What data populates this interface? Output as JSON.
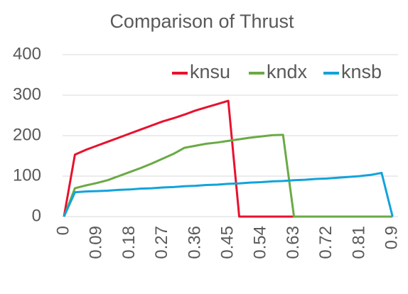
{
  "chart_data": {
    "type": "line",
    "title": "Comparison of Thrust",
    "x": [
      0,
      0.03,
      0.06,
      0.09,
      0.12,
      0.15,
      0.18,
      0.21,
      0.24,
      0.27,
      0.3,
      0.33,
      0.36,
      0.39,
      0.42,
      0.45,
      0.48,
      0.51,
      0.54,
      0.57,
      0.6,
      0.63,
      0.66,
      0.69,
      0.72,
      0.75,
      0.78,
      0.81,
      0.84,
      0.87,
      0.9
    ],
    "xlim": [
      0,
      0.915
    ],
    "xticks": [
      0,
      0.09,
      0.18,
      0.27,
      0.36,
      0.45,
      0.54,
      0.63,
      0.72,
      0.81,
      0.9
    ],
    "ylim": [
      0,
      400
    ],
    "yticks": [
      0,
      100,
      200,
      300,
      400
    ],
    "grid": true,
    "legend": "top-right",
    "series": [
      {
        "name": "knsu",
        "color": "#e8112d",
        "values": [
          0,
          153,
          165,
          175,
          185,
          195,
          205,
          215,
          225,
          235,
          243,
          252,
          262,
          270,
          278,
          286,
          0,
          0,
          0,
          0,
          0,
          0,
          null,
          null,
          null,
          null,
          null,
          null,
          null,
          null,
          null
        ]
      },
      {
        "name": "kndx",
        "color": "#6aaa45",
        "values": [
          0,
          70,
          77,
          83,
          90,
          100,
          110,
          120,
          131,
          143,
          155,
          170,
          175,
          180,
          183,
          187,
          191,
          195,
          198,
          201,
          202,
          0,
          0,
          0,
          0,
          0,
          0,
          0,
          0,
          0,
          0
        ]
      },
      {
        "name": "knsb",
        "color": "#12a3db",
        "values": [
          0,
          60,
          62,
          63,
          64,
          66,
          67,
          69,
          70,
          72,
          73,
          75,
          76,
          78,
          79,
          81,
          82,
          84,
          85,
          87,
          88,
          90,
          91,
          93,
          94,
          96,
          98,
          100,
          103,
          108,
          0
        ]
      }
    ]
  }
}
